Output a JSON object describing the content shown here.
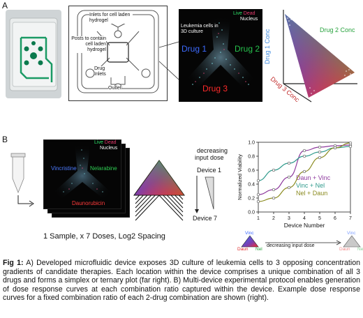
{
  "panel_a": {
    "letter": "A",
    "schematic": {
      "inlets_label": "Inlets for cell laden hydrogel",
      "posts_label": "Posts to contain cell laden hydrogel",
      "drug_inlets_label": "Drug Inlets",
      "outlet_label": "Outlet"
    },
    "micrograph": {
      "live_label": "Live",
      "dead_label": "Dead",
      "nucleus_label": "Nucleus",
      "cells_label": "Leukemia cells in 3D culture",
      "drug1": "Drug 1",
      "drug2": "Drug 2",
      "drug3": "Drug 3"
    },
    "simplex": {
      "axis1": "Drug 1 Conc",
      "axis2": "Drug 2 Conc",
      "axis3": "Drug 3 Conc"
    }
  },
  "panel_b": {
    "letter": "B",
    "stack": {
      "live_label": "Live",
      "dead_label": "Dead",
      "nucleus_label": "Nucleus",
      "drug_left": "Vincristine",
      "drug_right": "Nelarabine",
      "drug_bottom": "Daunorubicin"
    },
    "dose": {
      "label_line1": "decreasing",
      "label_line2": "input dose",
      "device_top": "Device 1",
      "device_bottom": "Device 7"
    },
    "sample_caption": "1 Sample, x 7 Doses, Log2 Spacing",
    "legend_tri": {
      "top": "Vinc",
      "left": "Daun",
      "right": "Nel",
      "arrow_label": "decreasing input dose"
    }
  },
  "chart_data": {
    "type": "line",
    "title": "",
    "xlabel": "Device Number",
    "ylabel": "Normalized Viability",
    "xlim": [
      1,
      7
    ],
    "ylim": [
      0.0,
      1.0
    ],
    "x_ticks": [
      "1",
      "2",
      "3",
      "4",
      "5",
      "6",
      "7"
    ],
    "y_ticks": [
      "0.0",
      "0.2",
      "0.4",
      "0.6",
      "0.8",
      "1.0"
    ],
    "series": [
      {
        "name": "Daun + Vinc",
        "color": "#8e3a9e",
        "x": [
          1,
          2,
          3,
          4,
          5,
          6,
          7
        ],
        "y": [
          0.25,
          0.32,
          0.5,
          0.88,
          0.93,
          0.95,
          0.96
        ]
      },
      {
        "name": "Vinc + Nel",
        "color": "#2f9a8c",
        "x": [
          1,
          2,
          3,
          4,
          5,
          6,
          7
        ],
        "y": [
          0.45,
          0.6,
          0.7,
          0.8,
          0.86,
          0.92,
          0.94
        ]
      },
      {
        "name": "Nel + Daun",
        "color": "#8a8a1e",
        "x": [
          1,
          2,
          3,
          4,
          5,
          6,
          7
        ],
        "y": [
          0.15,
          0.2,
          0.35,
          0.58,
          0.78,
          0.92,
          0.99
        ]
      }
    ]
  },
  "caption": {
    "bold_label": "Fig 1:",
    "text": " A) Developed microfluidic device exposes 3D culture of leukemia cells to 3 opposing concentration gradients of candidate therapies. Each location within the device comprises a unique combination of all 3 drugs and forms a simplex or ternary plot (far right). B) Multi-device experimental protocol enables generation of dose response curves at each combination ratio captured within the device. Example dose response curves for a fixed combination ratio of each 2-drug combination are shown (right)."
  },
  "colors": {
    "live": "#2ee56a",
    "dead": "#e53b6e",
    "drug1": "#3d6bff",
    "drug2": "#27c24d",
    "drug3": "#ff2a2a"
  }
}
